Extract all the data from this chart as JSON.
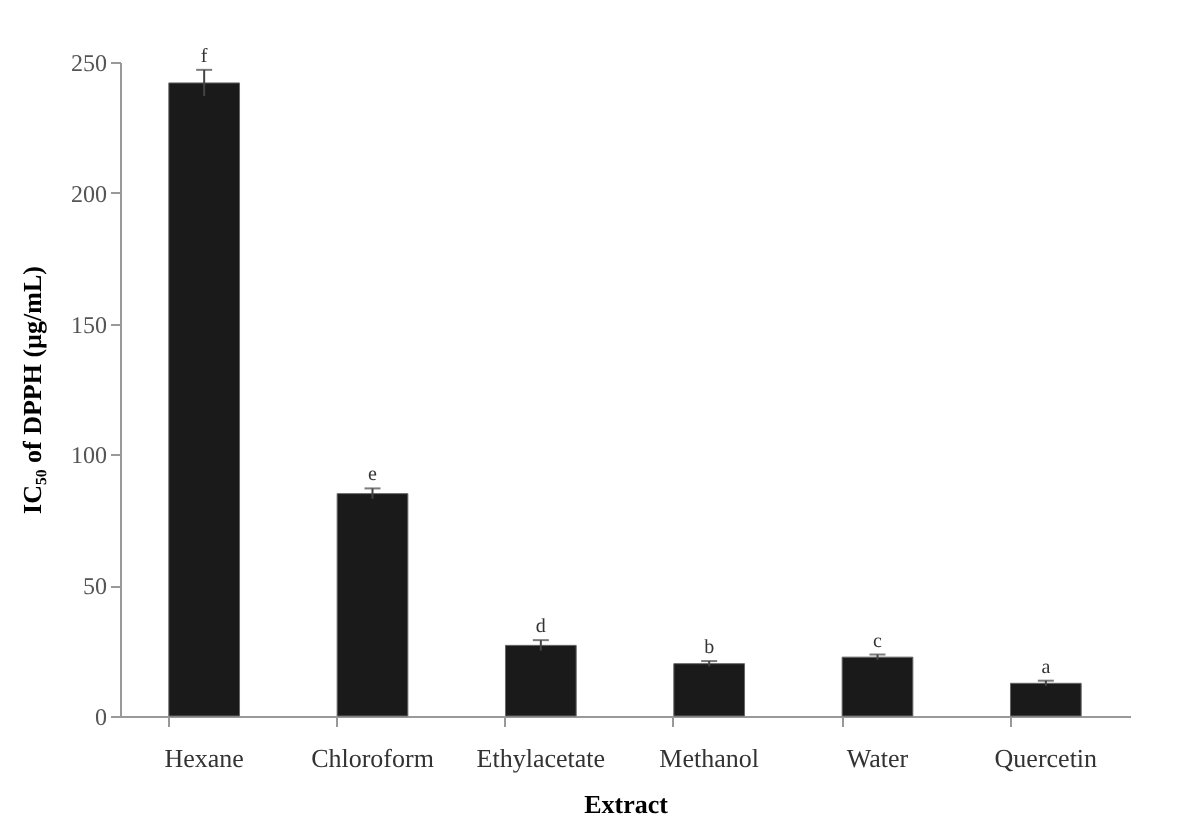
{
  "chart_data": {
    "type": "bar",
    "xlabel": "Extract",
    "ylabel": "IC₅₀ of DPPH (µg/mL)",
    "categories": [
      "Hexane",
      "Chloroform",
      "Ethylacetate",
      "Methanol",
      "Water",
      "Quercetin"
    ],
    "values": [
      242,
      85,
      27,
      20,
      22.5,
      12.5
    ],
    "errors": [
      5,
      2,
      2,
      1,
      1,
      1
    ],
    "color": "#1a1a1a",
    "ylim": [
      0,
      250
    ],
    "yticks": [
      0,
      50,
      100,
      150,
      200,
      250
    ],
    "grid": false,
    "annotations": [
      {
        "text": "f",
        "x": "Hexane",
        "y": 247
      },
      {
        "text": "e",
        "x": "Chloroform",
        "y": 87
      },
      {
        "text": "d",
        "x": "Ethylacetate",
        "y": 29
      },
      {
        "text": "b",
        "x": "Methanol",
        "y": 21
      },
      {
        "text": "c",
        "x": "Water",
        "y": 23.5
      },
      {
        "text": "a",
        "x": "Quercetin",
        "y": 13.5
      }
    ]
  }
}
